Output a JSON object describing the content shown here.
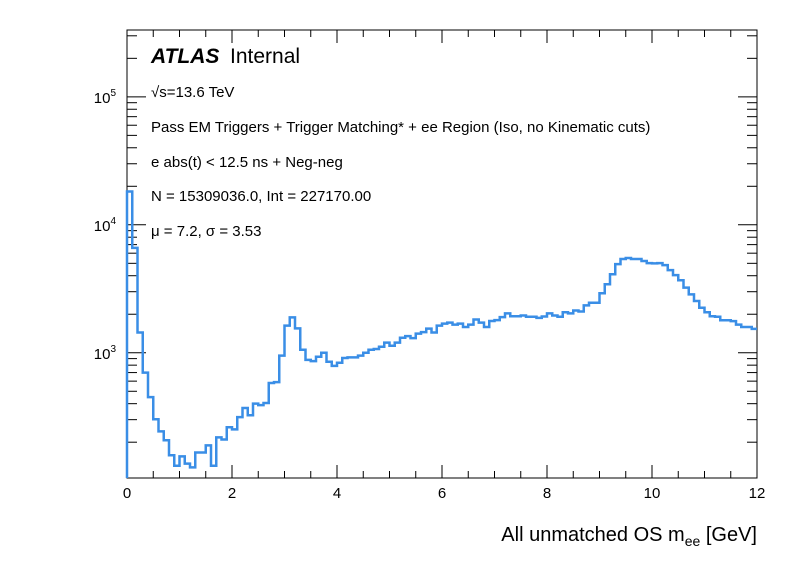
{
  "chart_data": {
    "type": "line",
    "style": "step-histogram",
    "title": "",
    "xlabel": "All unmatched OS m",
    "xlabel_sub": "ee",
    "xlabel_unit": " [GeV]",
    "ylabel": "",
    "xlim": [
      0,
      12
    ],
    "ylim": [
      105,
      333000
    ],
    "yscale": "log",
    "bin_width": 0.1,
    "x_ticks": [
      "0",
      "2",
      "4",
      "6",
      "8",
      "10",
      "12"
    ],
    "y_ticks": [
      {
        "base": "10",
        "exp": "3"
      },
      {
        "base": "10",
        "exp": "4"
      },
      {
        "base": "10",
        "exp": "5"
      }
    ],
    "color": "#3a8ee6",
    "annotations": {
      "atlas": "ATLAS",
      "internal": "Internal",
      "energy": "√s=13.6 TeV",
      "selection": "Pass EM Triggers + Trigger Matching* + ee Region (Iso, no Kinematic cuts)",
      "cut": "e abs(t) < 12.5 ns + Neg-neg",
      "stats": "N = 15309036.0, Int  = 227170.00",
      "fit": "μ = 7.2, σ = 3.53"
    },
    "values": [
      18200,
      6600,
      1440,
      700,
      450,
      302,
      243,
      207,
      158,
      131,
      155,
      136,
      127,
      166,
      166,
      189,
      131,
      218,
      210,
      262,
      252,
      314,
      370,
      325,
      400,
      390,
      405,
      580,
      590,
      950,
      1630,
      1890,
      1550,
      1055,
      880,
      861,
      930,
      1000,
      850,
      790,
      835,
      910,
      920,
      920,
      950,
      1000,
      1055,
      1070,
      1115,
      1200,
      1135,
      1200,
      1310,
      1350,
      1300,
      1410,
      1450,
      1545,
      1440,
      1630,
      1690,
      1720,
      1660,
      1690,
      1590,
      1660,
      1820,
      1720,
      1590,
      1770,
      1800,
      1900,
      2030,
      1930,
      1930,
      1955,
      1910,
      1910,
      1875,
      1920,
      2030,
      1955,
      1910,
      2075,
      2030,
      2140,
      2100,
      2345,
      2460,
      2460,
      2915,
      3430,
      4110,
      4930,
      5400,
      5500,
      5400,
      5400,
      5210,
      5020,
      5000,
      5020,
      4840,
      4420,
      4040,
      3690,
      3230,
      2860,
      2540,
      2250,
      2075,
      1930,
      1910,
      1795,
      1795,
      1765,
      1660,
      1590,
      1590,
      1537
    ]
  }
}
